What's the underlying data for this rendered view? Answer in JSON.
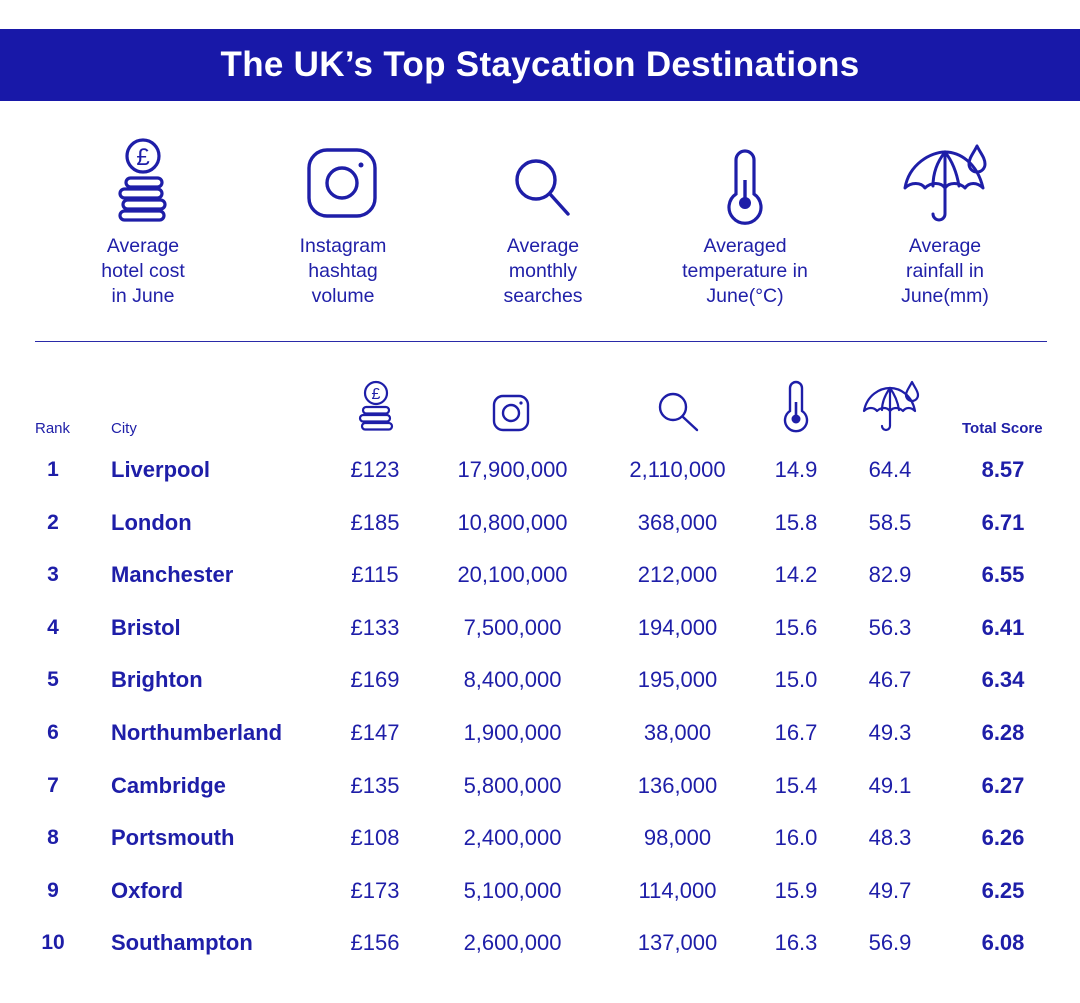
{
  "title": "The UK’s Top Staycation Destinations",
  "metrics": [
    {
      "label": "Average\nhotel cost\nin June",
      "icon": "pound-coins-icon"
    },
    {
      "label": "Instagram\nhashtag\nvolume",
      "icon": "instagram-icon"
    },
    {
      "label": "Average\nmonthly\nsearches",
      "icon": "search-icon"
    },
    {
      "label": "Averaged\ntemperature in\nJune(°C)",
      "icon": "thermometer-icon"
    },
    {
      "label": "Average\nrainfall in\nJune(mm)",
      "icon": "umbrella-rain-icon"
    }
  ],
  "headers": {
    "rank": "Rank",
    "city": "City",
    "total": "Total Score"
  },
  "colors": {
    "brand": "#1818a8",
    "text": "#1e1ea8",
    "background": "#ffffff"
  },
  "chart_data": {
    "type": "table",
    "title": "The UK’s Top Staycation Destinations",
    "columns": [
      "Rank",
      "City",
      "Average hotel cost in June",
      "Instagram hashtag volume",
      "Average monthly searches",
      "Averaged temperature in June(°C)",
      "Average rainfall in June(mm)",
      "Total Score"
    ],
    "rows": [
      {
        "rank": "1",
        "city": "Liverpool",
        "hotel": "£123",
        "instagram": "17,900,000",
        "searches": "2,110,000",
        "temp": "14.9",
        "rain": "64.4",
        "total": "8.57"
      },
      {
        "rank": "2",
        "city": "London",
        "hotel": "£185",
        "instagram": "10,800,000",
        "searches": "368,000",
        "temp": "15.8",
        "rain": "58.5",
        "total": "6.71"
      },
      {
        "rank": "3",
        "city": "Manchester",
        "hotel": "£115",
        "instagram": "20,100,000",
        "searches": "212,000",
        "temp": "14.2",
        "rain": "82.9",
        "total": "6.55"
      },
      {
        "rank": "4",
        "city": "Bristol",
        "hotel": "£133",
        "instagram": "7,500,000",
        "searches": "194,000",
        "temp": "15.6",
        "rain": "56.3",
        "total": "6.41"
      },
      {
        "rank": "5",
        "city": "Brighton",
        "hotel": "£169",
        "instagram": "8,400,000",
        "searches": "195,000",
        "temp": "15.0",
        "rain": "46.7",
        "total": "6.34"
      },
      {
        "rank": "6",
        "city": "Northumberland",
        "hotel": "£147",
        "instagram": "1,900,000",
        "searches": "38,000",
        "temp": "16.7",
        "rain": "49.3",
        "total": "6.28"
      },
      {
        "rank": "7",
        "city": "Cambridge",
        "hotel": "£135",
        "instagram": "5,800,000",
        "searches": "136,000",
        "temp": "15.4",
        "rain": "49.1",
        "total": "6.27"
      },
      {
        "rank": "8",
        "city": "Portsmouth",
        "hotel": "£108",
        "instagram": "2,400,000",
        "searches": "98,000",
        "temp": "16.0",
        "rain": "48.3",
        "total": "6.26"
      },
      {
        "rank": "9",
        "city": "Oxford",
        "hotel": "£173",
        "instagram": "5,100,000",
        "searches": "114,000",
        "temp": "15.9",
        "rain": "49.7",
        "total": "6.25"
      },
      {
        "rank": "10",
        "city": "Southampton",
        "hotel": "£156",
        "instagram": "2,600,000",
        "searches": "137,000",
        "temp": "16.3",
        "rain": "56.9",
        "total": "6.08"
      }
    ]
  }
}
